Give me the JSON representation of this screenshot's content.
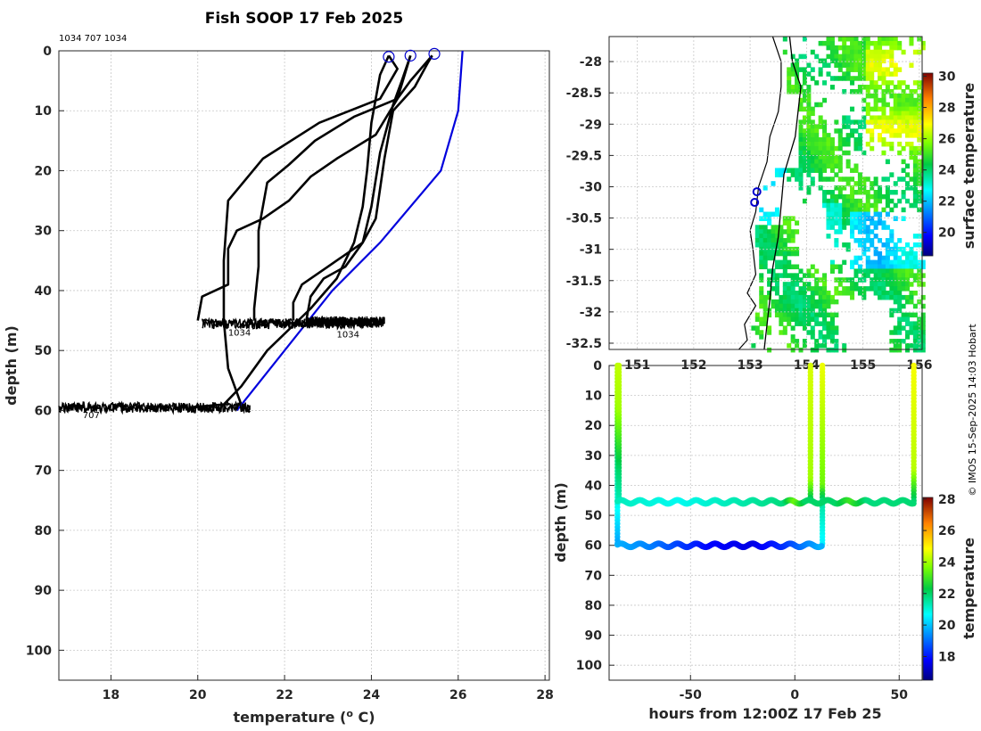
{
  "title": "Fish SOOP 17 Feb 2025",
  "credit": "© IMOS 15-Sep-2025 14:03 Hobart",
  "chart_data": [
    {
      "id": "profiles",
      "type": "line",
      "header_text": "1034 707 1034",
      "xlabel": "temperature (",
      "xlabel_sup": "o",
      "xlabel_end": " C)",
      "ylabel": "depth (m)",
      "xlim": [
        16.8,
        28.1
      ],
      "ylim": [
        0,
        105
      ],
      "y_reversed": true,
      "xticks": [
        18,
        20,
        22,
        24,
        26,
        28
      ],
      "yticks": [
        0,
        10,
        20,
        30,
        40,
        50,
        60,
        70,
        80,
        90,
        100
      ],
      "grid": true,
      "series": [
        {
          "color": "#000000",
          "points": [
            [
              24.4,
              0.8
            ],
            [
              24.2,
              4
            ],
            [
              24.0,
              12
            ],
            [
              23.9,
              20
            ],
            [
              23.8,
              26
            ],
            [
              23.6,
              32
            ],
            [
              23.2,
              38
            ],
            [
              22.6,
              43
            ],
            [
              21.6,
              50
            ],
            [
              21.0,
              56
            ],
            [
              20.6,
              59
            ],
            [
              19.8,
              59.5
            ]
          ]
        },
        {
          "color": "#000000",
          "points": [
            [
              24.4,
              0.8
            ],
            [
              24.6,
              3
            ],
            [
              24.2,
              8
            ],
            [
              22.8,
              12
            ],
            [
              21.5,
              18
            ],
            [
              20.7,
              25
            ],
            [
              20.6,
              35
            ],
            [
              20.6,
              45
            ],
            [
              20.7,
              53
            ],
            [
              21.0,
              59
            ],
            [
              21.2,
              60.3
            ]
          ]
        },
        {
          "color": "#000000",
          "points": [
            [
              24.9,
              0.8
            ],
            [
              24.7,
              5
            ],
            [
              24.5,
              9
            ],
            [
              24.2,
              17
            ],
            [
              24.0,
              26
            ],
            [
              23.8,
              32
            ],
            [
              23.4,
              36
            ],
            [
              22.9,
              38
            ],
            [
              22.6,
              41
            ],
            [
              22.5,
              45
            ]
          ]
        },
        {
          "color": "#000000",
          "points": [
            [
              24.9,
              0.8
            ],
            [
              24.6,
              8
            ],
            [
              24.1,
              14
            ],
            [
              23.2,
              18
            ],
            [
              22.6,
              21
            ],
            [
              22.1,
              25
            ],
            [
              21.5,
              28
            ],
            [
              20.9,
              30
            ],
            [
              20.7,
              33
            ],
            [
              20.7,
              39
            ],
            [
              20.1,
              41
            ],
            [
              20.0,
              45
            ]
          ]
        },
        {
          "color": "#000000",
          "points": [
            [
              25.4,
              0.8
            ],
            [
              25.3,
              2
            ],
            [
              25.0,
              6
            ],
            [
              24.5,
              10
            ],
            [
              24.3,
              18
            ],
            [
              24.1,
              28
            ],
            [
              23.8,
              32
            ],
            [
              23.0,
              36
            ],
            [
              22.4,
              39
            ],
            [
              22.2,
              42
            ],
            [
              22.2,
              45
            ]
          ]
        },
        {
          "color": "#000000",
          "points": [
            [
              25.4,
              0.8
            ],
            [
              24.9,
              5
            ],
            [
              24.6,
              8
            ],
            [
              23.6,
              11
            ],
            [
              22.7,
              15
            ],
            [
              22.1,
              19
            ],
            [
              21.6,
              22
            ],
            [
              21.5,
              26
            ],
            [
              21.4,
              30
            ],
            [
              21.4,
              36
            ],
            [
              21.3,
              43
            ],
            [
              21.3,
              45
            ]
          ]
        }
      ],
      "model_line": {
        "color": "#0000dd",
        "points": [
          [
            26.1,
            0
          ],
          [
            26.0,
            10
          ],
          [
            25.6,
            20
          ],
          [
            24.2,
            32
          ],
          [
            23.1,
            40
          ],
          [
            22.0,
            50
          ],
          [
            20.9,
            60
          ]
        ]
      },
      "bottom_bands": [
        {
          "x0": 20.1,
          "x1": 24.2,
          "depth": 45.5,
          "label": "1034",
          "label_x": 20.7,
          "label_y": 47.5
        },
        {
          "x0": 22.5,
          "x1": 24.3,
          "depth": 45.2,
          "label": "1034",
          "label_x": 23.2,
          "label_y": 47.8
        },
        {
          "x0": 16.8,
          "x1": 21.2,
          "depth": 59.5,
          "label": "707",
          "label_x": 17.35,
          "label_y": 61.3
        }
      ],
      "surface_markers": [
        [
          24.4,
          1.0
        ],
        [
          24.9,
          0.8
        ],
        [
          25.45,
          0.5
        ]
      ]
    },
    {
      "id": "map",
      "type": "heatmap",
      "xlim": [
        150.5,
        156.05
      ],
      "ylim": [
        -32.6,
        -27.6
      ],
      "xticks": [
        151,
        152,
        153,
        154,
        155,
        156
      ],
      "xticklabels": [
        "151",
        "152",
        "153",
        "154",
        "155",
        "156"
      ],
      "yticks": [
        -28,
        -28.5,
        -29,
        -29.5,
        -30,
        -30.5,
        -31,
        -31.5,
        -32,
        -32.5
      ],
      "yticklabels": [
        "-28",
        "-28.5",
        "-29",
        "-29.5",
        "-30",
        "-30.5",
        "-31",
        "-31.5",
        "-32",
        "-32.5"
      ],
      "colorbar_label": "surface temperature",
      "clim": [
        18.5,
        30.2
      ],
      "colorbar_ticks": [
        20,
        22,
        24,
        26,
        28,
        30
      ],
      "deployment_markers": [
        [
          153.12,
          -30.08
        ],
        [
          153.08,
          -30.25
        ]
      ],
      "coastline": [
        [
          152.8,
          -32.6
        ],
        [
          152.95,
          -32.45
        ],
        [
          152.9,
          -32.2
        ],
        [
          153.1,
          -31.9
        ],
        [
          152.95,
          -31.7
        ],
        [
          153.1,
          -31.4
        ],
        [
          153.05,
          -31.0
        ],
        [
          153.0,
          -30.7
        ],
        [
          153.1,
          -30.4
        ],
        [
          153.15,
          -30.0
        ],
        [
          153.3,
          -29.6
        ],
        [
          153.35,
          -29.2
        ],
        [
          153.5,
          -28.8
        ],
        [
          153.55,
          -28.4
        ],
        [
          153.55,
          -28.0
        ],
        [
          153.4,
          -27.6
        ]
      ],
      "shelf_line": [
        [
          153.25,
          -32.6
        ],
        [
          153.3,
          -32.2
        ],
        [
          153.35,
          -31.8
        ],
        [
          153.4,
          -31.3
        ],
        [
          153.5,
          -30.8
        ],
        [
          153.55,
          -30.3
        ],
        [
          153.6,
          -29.8
        ],
        [
          153.8,
          -29.2
        ],
        [
          153.85,
          -28.8
        ],
        [
          153.9,
          -28.4
        ],
        [
          153.75,
          -28.0
        ],
        [
          153.7,
          -27.6
        ]
      ]
    },
    {
      "id": "timeseries",
      "type": "scatter",
      "xlabel": "hours from 12:00Z 17 Feb 25",
      "ylabel": "depth (m)",
      "xlim": [
        -89,
        61
      ],
      "ylim": [
        0,
        105
      ],
      "y_reversed": true,
      "xticks": [
        -50,
        0,
        50
      ],
      "yticks": [
        0,
        10,
        20,
        30,
        40,
        50,
        60,
        70,
        80,
        90,
        100
      ],
      "colorbar_label": "temperature",
      "clim": [
        16.5,
        28.1
      ],
      "colorbar_ticks": [
        18,
        20,
        22,
        24,
        26,
        28
      ],
      "series": [
        {
          "name": "",
          "kind": "vertical",
          "x": -85,
          "depths": [
            0,
            60
          ],
          "temps": [
            [
              0,
              24.2
            ],
            [
              12,
              24.0
            ],
            [
              20,
              23.2
            ],
            [
              30,
              22.0
            ],
            [
              45,
              21.0
            ],
            [
              60,
              19.6
            ]
          ]
        },
        {
          "name": "",
          "kind": "vertical",
          "x": -84.3,
          "depths": [
            0,
            46
          ],
          "temps": [
            [
              0,
              24.3
            ],
            [
              15,
              24.0
            ],
            [
              25,
              23.0
            ],
            [
              35,
              22.0
            ],
            [
              46,
              21.3
            ]
          ]
        },
        {
          "name": "",
          "kind": "vertical",
          "x": 7.5,
          "depths": [
            0,
            46
          ],
          "temps": [
            [
              0,
              24.5
            ],
            [
              38,
              24.0
            ],
            [
              42,
              23.0
            ],
            [
              46,
              21.5
            ]
          ]
        },
        {
          "name": "",
          "kind": "vertical",
          "x": 13.2,
          "depths": [
            0,
            60
          ],
          "temps": [
            [
              0,
              24.7
            ],
            [
              40,
              23.5
            ],
            [
              46,
              21.5
            ],
            [
              60,
              20.5
            ]
          ]
        },
        {
          "name": "",
          "kind": "vertical",
          "x": 57,
          "depths": [
            0,
            46
          ],
          "temps": [
            [
              0,
              24.8
            ],
            [
              35,
              24.2
            ],
            [
              46,
              21.8
            ]
          ]
        },
        {
          "name": "",
          "kind": "band",
          "x0": -85,
          "x1": 13.2,
          "depth": 60,
          "amp": 0.6,
          "period": 9,
          "temps": [
            [
              -85,
              19.8
            ],
            [
              -70,
              19.3
            ],
            [
              -55,
              18.5
            ],
            [
              -40,
              17.8
            ],
            [
              -20,
              17.5
            ],
            [
              -5,
              18.3
            ],
            [
              5,
              19.2
            ],
            [
              13,
              19.8
            ]
          ]
        },
        {
          "name": "",
          "kind": "band",
          "x0": -85,
          "x1": 57,
          "depth": 45.5,
          "amp": 0.6,
          "period": 9,
          "temps": [
            [
              -85,
              21.3
            ],
            [
              -70,
              21.0
            ],
            [
              -55,
              20.8
            ],
            [
              -40,
              21.1
            ],
            [
              -20,
              21.5
            ],
            [
              -5,
              21.8
            ],
            [
              0,
              23.5
            ],
            [
              5,
              22.0
            ],
            [
              20,
              22.0
            ],
            [
              27,
              23.0
            ],
            [
              35,
              21.8
            ],
            [
              57,
              21.9
            ]
          ]
        }
      ]
    }
  ]
}
